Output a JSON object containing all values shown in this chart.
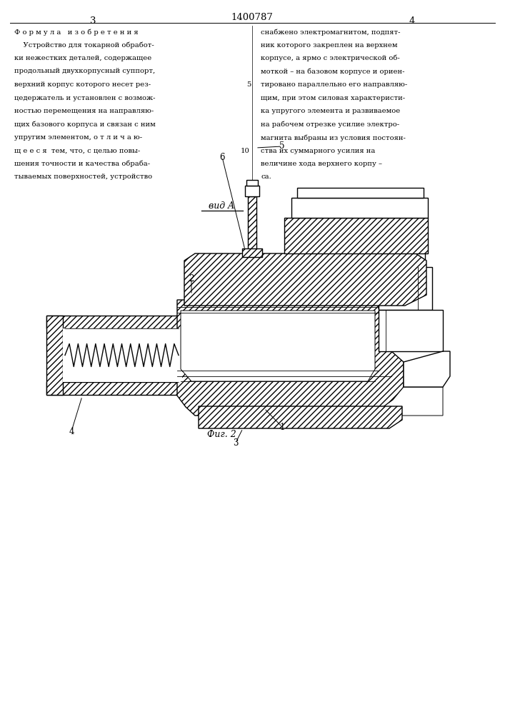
{
  "page_bg": "#ffffff",
  "page_width": 7.07,
  "page_height": 10.0,
  "patent_num": "1400787",
  "page_left": "3",
  "page_right": "4",
  "left_col": [
    "Ф о р м у л а   и з о б р е т е н и я",
    "    Устройство для токарной обработ-",
    "ки нежестких деталей, содержащее",
    "продольный двухкорпусный суппорт,",
    "верхний корпус которого несет рез-",
    "цедержатель и установлен с возмож-",
    "ностью перемещения на направляю-",
    "щих базового корпуса и связан с ним",
    "упругим элементом, о т л и ч а ю-",
    "щ е е с я  тем, что, с целью повы-",
    "шения точности и качества обраба-",
    "тываемых поверхностей, устройство"
  ],
  "right_col": [
    "снабжено электромагнитом, подпят-",
    "ник которого закреплен на верхнем",
    "корпусе, а ярмо с электрической об-",
    "моткой – на базовом корпусе и ориен-",
    "тировано параллельно его направляю-",
    "щим, при этом силовая характеристи-",
    "ка упругого элемента и развиваемое",
    "на рабочем отрезке усилие электро-",
    "магнита выбраны из условия постоян-",
    "ства их суммарного усилия на",
    "величине хода верхнего корпу –",
    "са."
  ],
  "vid_label": "вид A",
  "fig_label": "Фиг. 2"
}
